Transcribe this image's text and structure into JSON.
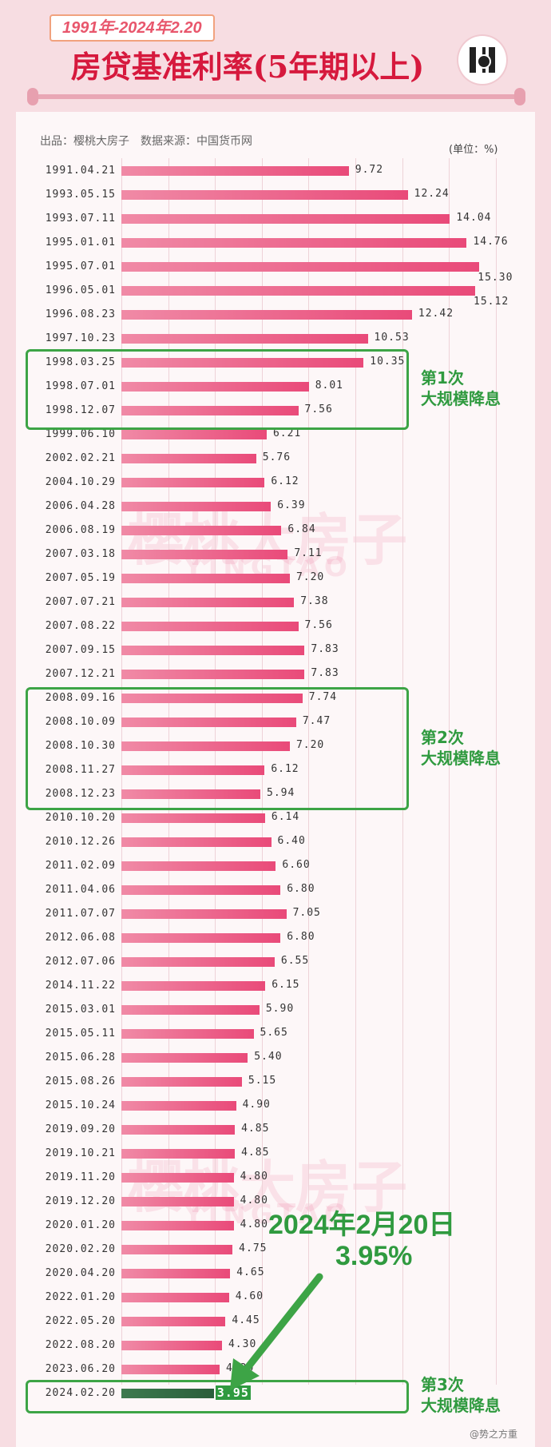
{
  "header": {
    "date_range": "1991年-2024年2.20",
    "title": "房贷基准利率(5年期以上)",
    "meta": "出品：樱桃大房子　数据来源：中国货币网",
    "unit": "(单位：%)"
  },
  "watermark": {
    "cn": "樱桃大房子",
    "en": "YINGTAO"
  },
  "groups": [
    {
      "label_1": "第1次",
      "label_2": "大规模降息"
    },
    {
      "label_1": "第2次",
      "label_2": "大规模降息"
    },
    {
      "label_1": "第3次",
      "label_2": "大规模降息"
    }
  ],
  "annotation": {
    "date": "2024年2月20日",
    "value": "3.95%"
  },
  "credit": "@势之方重",
  "colors": {
    "bar": "#e94a79",
    "highlight": "#2f9a3f",
    "title": "#d6193d"
  },
  "chart_data": {
    "type": "bar",
    "orientation": "horizontal",
    "title": "房贷基准利率(5年期以上)",
    "unit": "%",
    "categories": [
      "1991.04.21",
      "1993.05.15",
      "1993.07.11",
      "1995.01.01",
      "1995.07.01",
      "1996.05.01",
      "1996.08.23",
      "1997.10.23",
      "1998.03.25",
      "1998.07.01",
      "1998.12.07",
      "1999.06.10",
      "2002.02.21",
      "2004.10.29",
      "2006.04.28",
      "2006.08.19",
      "2007.03.18",
      "2007.05.19",
      "2007.07.21",
      "2007.08.22",
      "2007.09.15",
      "2007.12.21",
      "2008.09.16",
      "2008.10.09",
      "2008.10.30",
      "2008.11.27",
      "2008.12.23",
      "2010.10.20",
      "2010.12.26",
      "2011.02.09",
      "2011.04.06",
      "2011.07.07",
      "2012.06.08",
      "2012.07.06",
      "2014.11.22",
      "2015.03.01",
      "2015.05.11",
      "2015.06.28",
      "2015.08.26",
      "2015.10.24",
      "2019.09.20",
      "2019.10.21",
      "2019.11.20",
      "2019.12.20",
      "2020.01.20",
      "2020.02.20",
      "2020.04.20",
      "2022.01.20",
      "2022.05.20",
      "2022.08.20",
      "2023.06.20",
      "2024.02.20"
    ],
    "labels": [
      "9.72",
      "12.24",
      "14.04",
      "14.76",
      "15.30",
      "15.12",
      "12.42",
      "10.53",
      "10.35",
      "8.01",
      "7.56",
      "6.21",
      "5.76",
      "6.12",
      "6.39",
      "6.84",
      "7.11",
      "7.20",
      "7.38",
      "7.56",
      "7.83",
      "7.83",
      "7.74",
      "7.47",
      "7.20",
      "6.12",
      "5.94",
      "6.14",
      "6.40",
      "6.60",
      "6.80",
      "7.05",
      "6.80",
      "6.55",
      "6.15",
      "5.90",
      "5.65",
      "5.40",
      "5.15",
      "4.90",
      "4.85",
      "4.85",
      "4.80",
      "4.80",
      "4.80",
      "4.75",
      "4.65",
      "4.60",
      "4.45",
      "4.30",
      "4.20",
      "3.95"
    ],
    "values": [
      9.72,
      12.24,
      14.04,
      14.76,
      15.3,
      15.12,
      12.42,
      10.53,
      10.35,
      8.01,
      7.56,
      6.21,
      5.76,
      6.12,
      6.39,
      6.84,
      7.11,
      7.2,
      7.38,
      7.56,
      7.83,
      7.83,
      7.74,
      7.47,
      7.2,
      6.12,
      5.94,
      6.14,
      6.4,
      6.6,
      6.8,
      7.05,
      6.8,
      6.55,
      6.15,
      5.9,
      5.65,
      5.4,
      5.15,
      4.9,
      4.85,
      4.85,
      4.8,
      4.8,
      4.8,
      4.75,
      4.65,
      4.6,
      4.45,
      4.3,
      4.2,
      3.95
    ],
    "highlight_groups": [
      [
        8,
        10
      ],
      [
        22,
        26
      ],
      [
        51,
        51
      ]
    ],
    "grid": true
  }
}
